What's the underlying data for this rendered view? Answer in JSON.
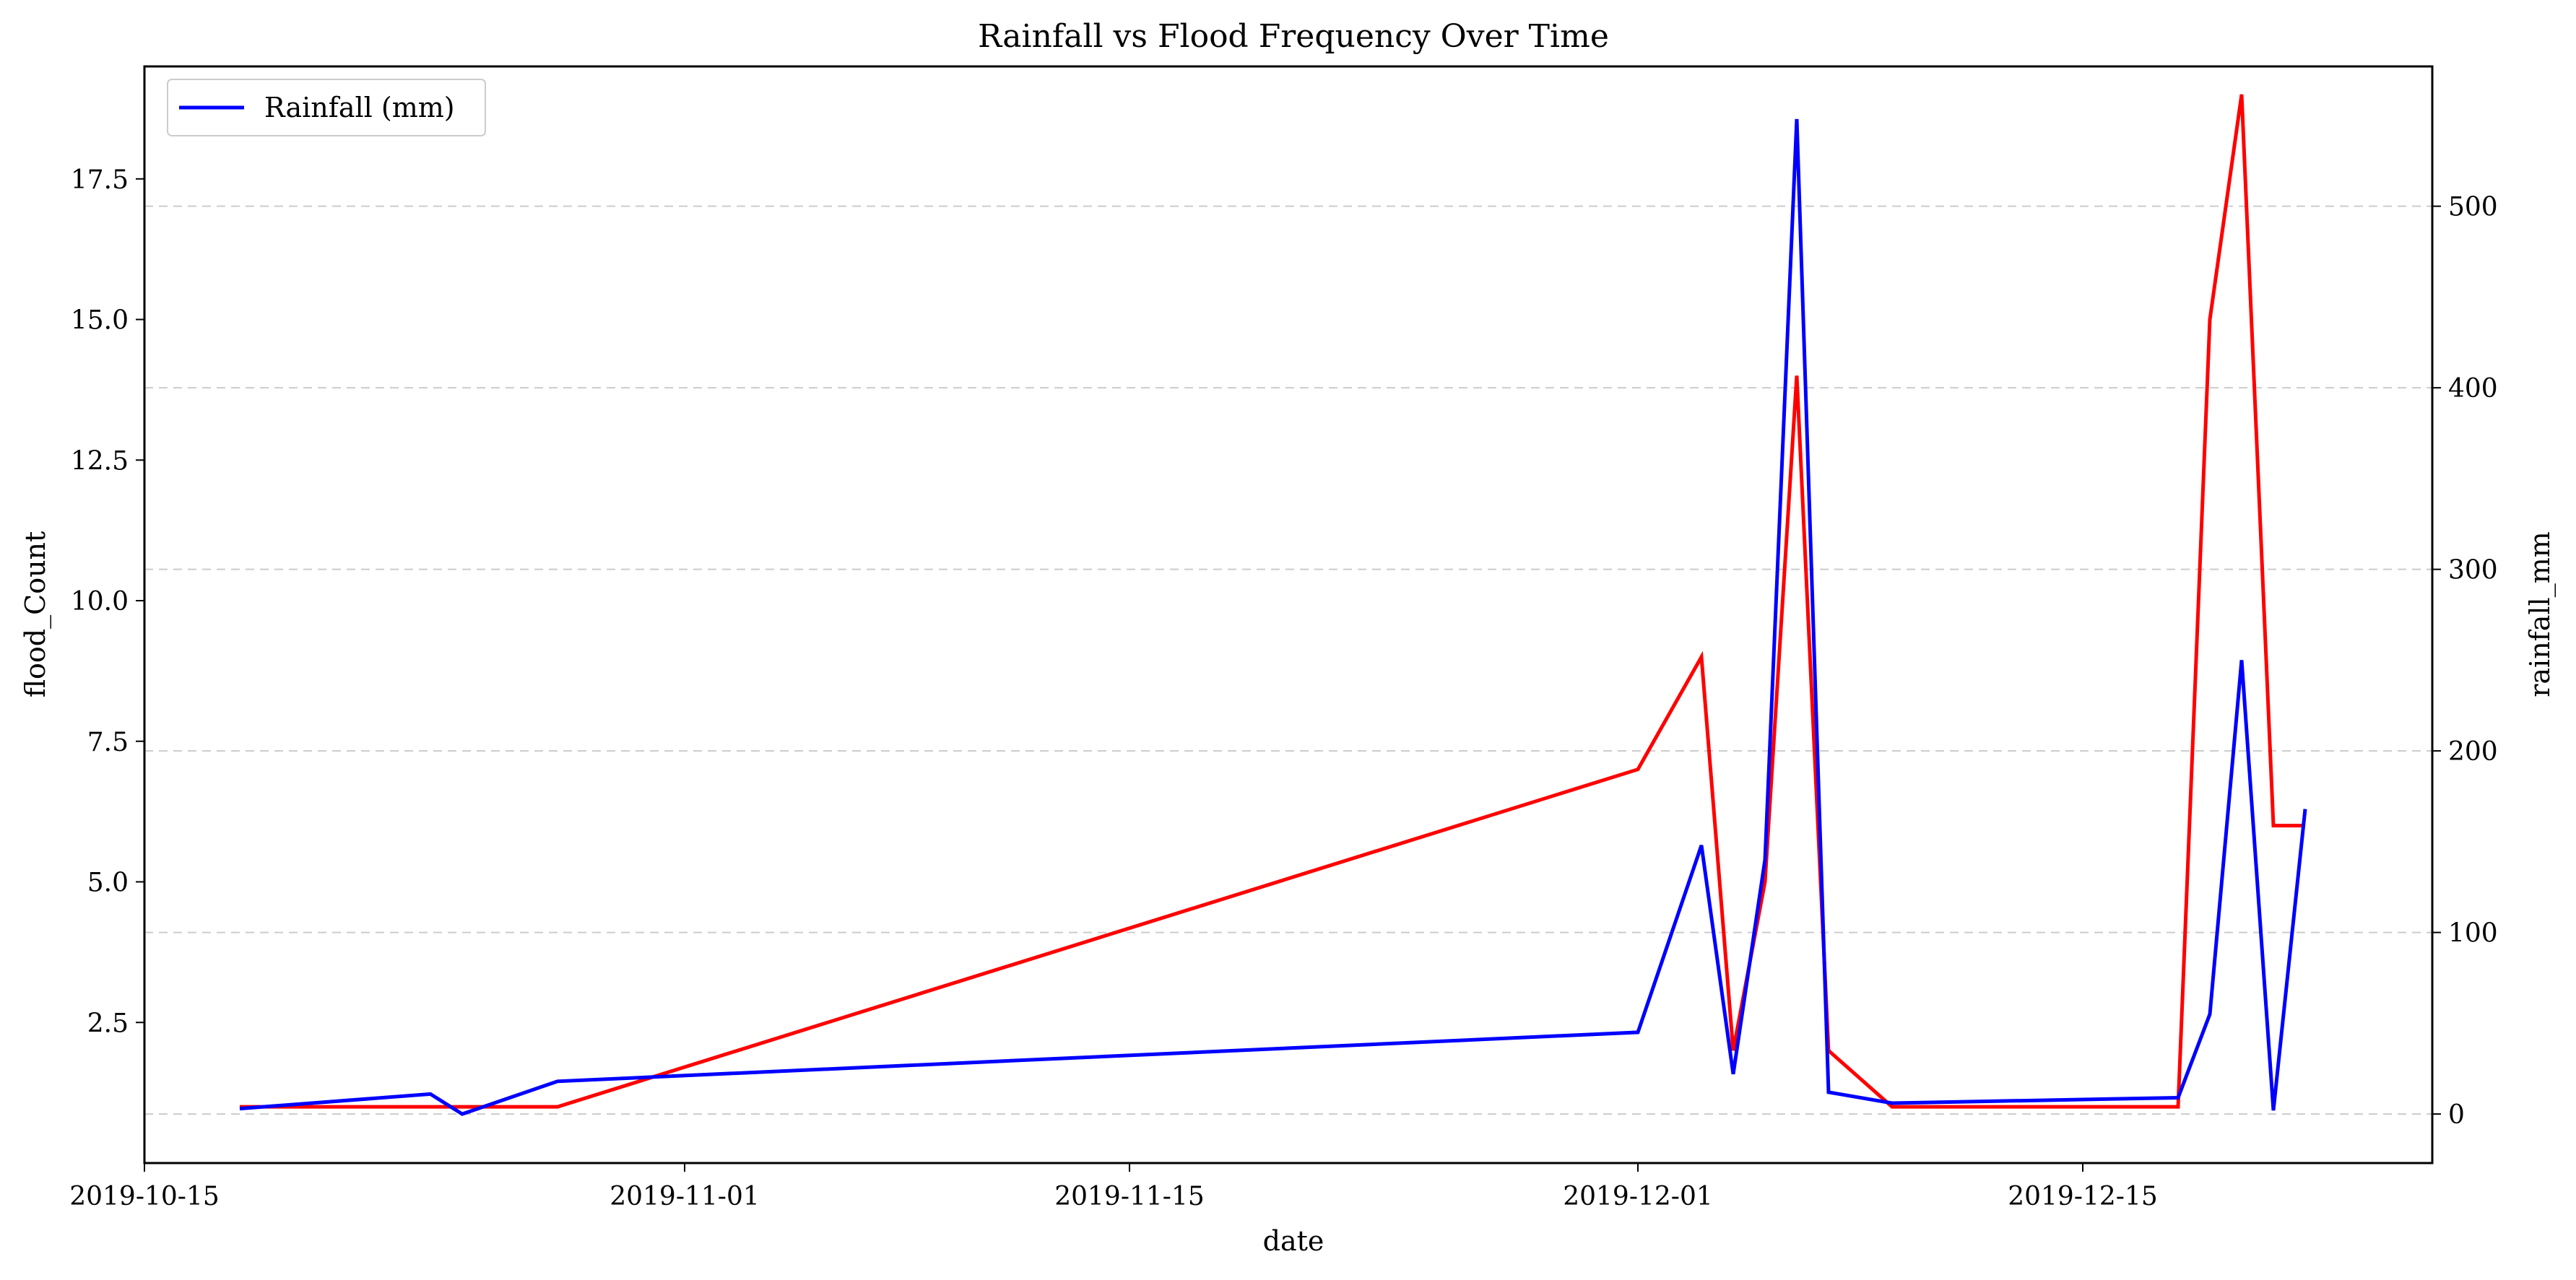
{
  "chart_data": {
    "type": "line",
    "title": "Rainfall vs Flood Frequency Over Time",
    "xlabel": "date",
    "ylabel_left": "flood_Count",
    "ylabel_right": "rainfall_mm",
    "x_ticks": [
      "2019-10-15",
      "2019-11-01",
      "2019-11-15",
      "2019-12-01",
      "2019-12-15"
    ],
    "y_left_ticks": [
      "2.5",
      "5.0",
      "7.5",
      "10.0",
      "12.5",
      "15.0",
      "17.5"
    ],
    "y_right_ticks": [
      "0",
      "100",
      "200",
      "300",
      "400",
      "500"
    ],
    "y_left_lim": [
      0.0,
      19.5
    ],
    "y_right_lim": [
      -27,
      577
    ],
    "x_lim": [
      "2019-10-15",
      "2019-12-26"
    ],
    "grid": "horizontal dashed",
    "legend": {
      "placement": "top-left",
      "entries": [
        "Rainfall (mm)"
      ]
    },
    "series": [
      {
        "name": "Rainfall (mm)",
        "axis": "right",
        "color": "#0000ff",
        "points": [
          [
            "2019-10-18",
            3
          ],
          [
            "2019-10-24",
            11
          ],
          [
            "2019-10-25",
            0
          ],
          [
            "2019-10-28",
            18
          ],
          [
            "2019-12-01",
            45
          ],
          [
            "2019-12-03",
            148
          ],
          [
            "2019-12-04",
            22
          ],
          [
            "2019-12-05",
            140
          ],
          [
            "2019-12-06",
            548
          ],
          [
            "2019-12-07",
            12
          ],
          [
            "2019-12-09",
            6
          ],
          [
            "2019-12-18",
            9
          ],
          [
            "2019-12-19",
            55
          ],
          [
            "2019-12-20",
            250
          ],
          [
            "2019-12-21",
            2
          ],
          [
            "2019-12-22",
            168
          ]
        ]
      },
      {
        "axis": "left",
        "color": "#ff0000",
        "points": [
          [
            "2019-10-18",
            1
          ],
          [
            "2019-10-28",
            1
          ],
          [
            "2019-12-01",
            7
          ],
          [
            "2019-12-03",
            9
          ],
          [
            "2019-12-04",
            2
          ],
          [
            "2019-12-05",
            5
          ],
          [
            "2019-12-06",
            14
          ],
          [
            "2019-12-07",
            2
          ],
          [
            "2019-12-09",
            1
          ],
          [
            "2019-12-18",
            1
          ],
          [
            "2019-12-19",
            15
          ],
          [
            "2019-12-20",
            19
          ],
          [
            "2019-12-21",
            6
          ],
          [
            "2019-12-22",
            6
          ]
        ]
      }
    ]
  }
}
